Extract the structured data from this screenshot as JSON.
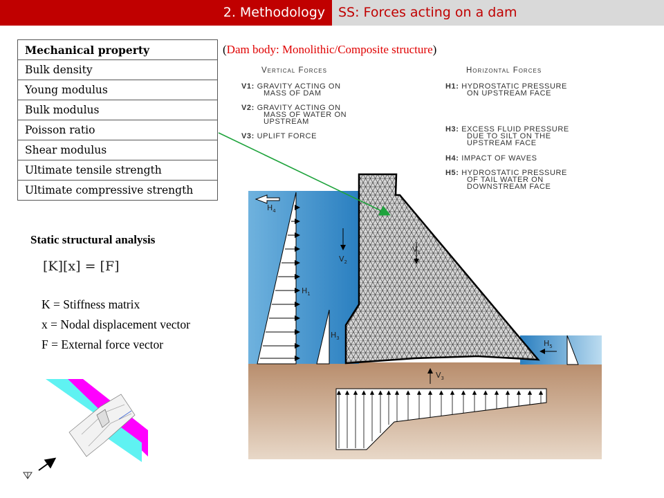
{
  "header": {
    "section": "2. Methodology",
    "topic": "SS: Forces acting on a dam"
  },
  "table": {
    "header": "Mechanical property",
    "rows": [
      "Bulk density",
      "Young modulus",
      "Bulk modulus",
      "Poisson ratio",
      "Shear modulus",
      "Ultimate tensile strength",
      "Ultimate compressive strength"
    ]
  },
  "subtitle": {
    "open": "(",
    "red_text": "Dam body: Monolithic/Composite structure",
    "close": ")"
  },
  "analysis": {
    "title": "Static structural  analysis",
    "equation": "[K][x] = [F]",
    "definitions": [
      "K = Stiffness  matrix",
      "x  = Nodal displacement  vector",
      "F =  External  force vector"
    ]
  },
  "forces": {
    "vertical_heading": "Vertical Forces",
    "horizontal_heading": "Horizontal Forces",
    "vertical": [
      {
        "id": "V1:",
        "text1": "Gravity acting on",
        "text2": "mass of dam",
        "text3": ""
      },
      {
        "id": "V2:",
        "text1": "Gravity acting on",
        "text2": "mass of water on",
        "text3": "upstream"
      },
      {
        "id": "V3:",
        "text1": "Uplift force",
        "text2": "",
        "text3": ""
      }
    ],
    "horizontal": [
      {
        "id": "H1:",
        "text1": "Hydrostatic pressure",
        "text2": "on upstream face",
        "text3": ""
      },
      {
        "id": "H3:",
        "text1": "Excess fluid pressure",
        "text2": "due to silt on the",
        "text3": "upstream face"
      },
      {
        "id": "H4:",
        "text1": "Impact of waves",
        "text2": "",
        "text3": ""
      },
      {
        "id": "H5:",
        "text1": "Hydrostatic pressure",
        "text2": "of tail water on",
        "text3": "downstream face"
      }
    ]
  },
  "diagram_labels": {
    "h4": "H",
    "h4_sub": "4",
    "v2": "V",
    "v2_sub": "2",
    "v1": "V",
    "v1_sub": "1",
    "h1": "H",
    "h1_sub": "1",
    "h3": "H",
    "h3_sub": "3",
    "h5": "H",
    "h5_sub": "5",
    "v3": "V",
    "v3_sub": "3"
  },
  "colors": {
    "header_red": "#c00000",
    "header_gray": "#d9d9d9",
    "water": "#2f86c6",
    "soil": "#c9a184",
    "green_arrow": "#1ea33c",
    "magenta": "#ff00ff",
    "cyan": "#5ff2f2"
  }
}
